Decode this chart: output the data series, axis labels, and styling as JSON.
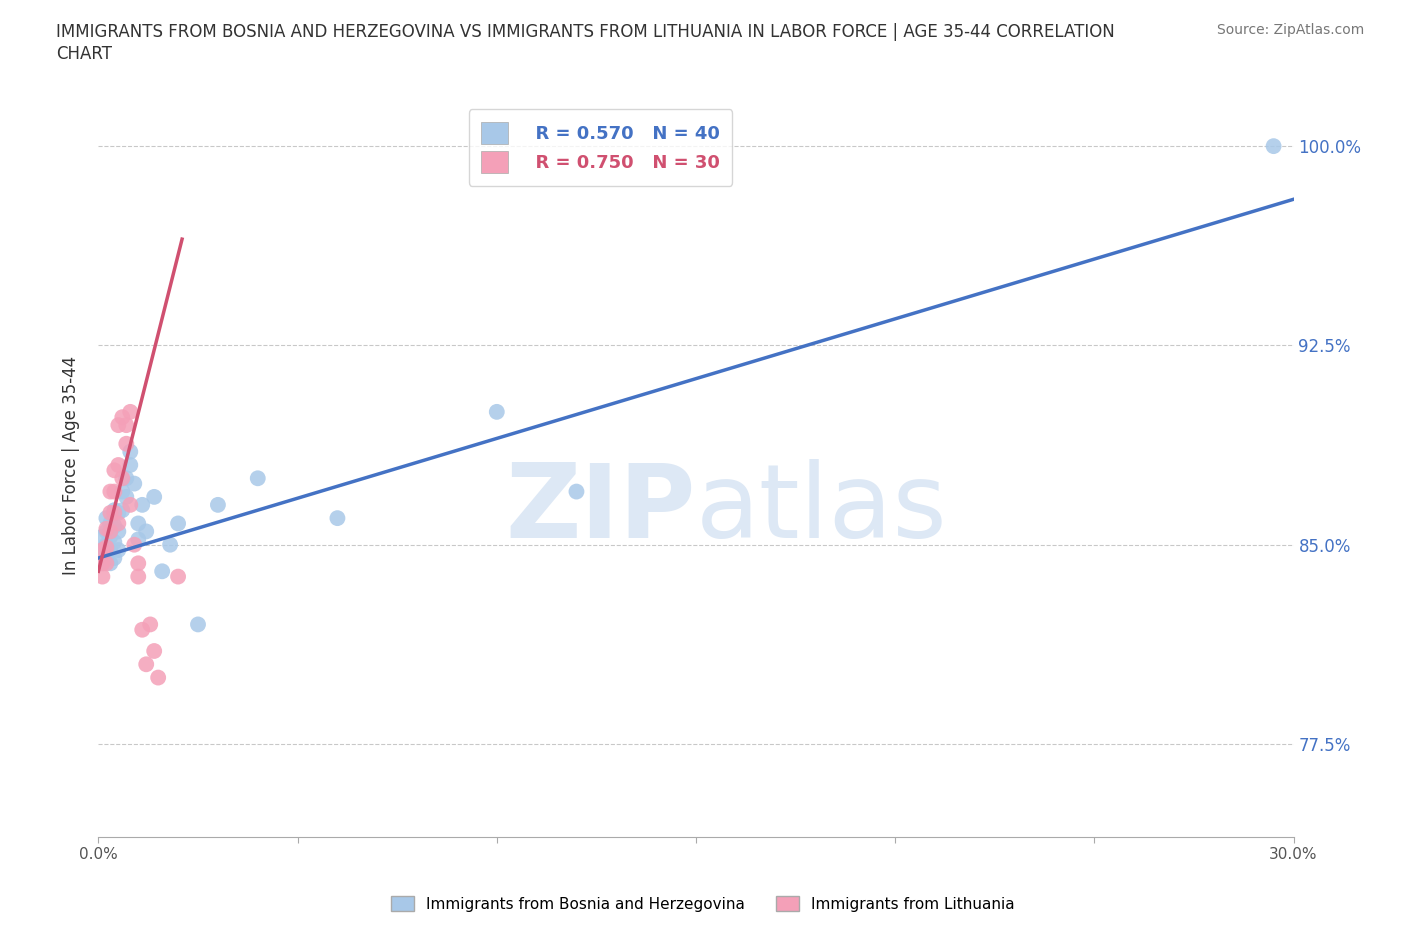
{
  "title": "IMMIGRANTS FROM BOSNIA AND HERZEGOVINA VS IMMIGRANTS FROM LITHUANIA IN LABOR FORCE | AGE 35-44 CORRELATION\nCHART",
  "source": "Source: ZipAtlas.com",
  "ylabel": "In Labor Force | Age 35-44",
  "xmin": 0.0,
  "xmax": 0.3,
  "ymin": 0.74,
  "ymax": 1.02,
  "yticks": [
    0.775,
    0.85,
    0.925,
    1.0
  ],
  "ytick_labels": [
    "77.5%",
    "85.0%",
    "92.5%",
    "100.0%"
  ],
  "xticks": [
    0.0,
    0.05,
    0.1,
    0.15,
    0.2,
    0.25,
    0.3
  ],
  "xtick_labels": [
    "0.0%",
    "",
    "",
    "",
    "",
    "",
    "30.0%"
  ],
  "bosnia_color": "#a8c8e8",
  "lithuania_color": "#f4a0b8",
  "line_bosnia_color": "#4472c4",
  "line_lithuania_color": "#d05070",
  "watermark_color": "#dde8f5",
  "legend_r_bosnia": "R = 0.570",
  "legend_n_bosnia": "N = 40",
  "legend_r_lithuania": "R = 0.750",
  "legend_n_lithuania": "N = 30",
  "bosnia_scatter_x": [
    0.001,
    0.001,
    0.001,
    0.002,
    0.002,
    0.002,
    0.002,
    0.003,
    0.003,
    0.003,
    0.003,
    0.004,
    0.004,
    0.004,
    0.004,
    0.005,
    0.005,
    0.005,
    0.006,
    0.006,
    0.007,
    0.007,
    0.008,
    0.008,
    0.009,
    0.01,
    0.01,
    0.011,
    0.012,
    0.014,
    0.016,
    0.018,
    0.02,
    0.025,
    0.03,
    0.04,
    0.06,
    0.1,
    0.12,
    0.295
  ],
  "bosnia_scatter_y": [
    0.853,
    0.848,
    0.843,
    0.86,
    0.855,
    0.85,
    0.845,
    0.858,
    0.853,
    0.848,
    0.843,
    0.863,
    0.857,
    0.851,
    0.845,
    0.862,
    0.855,
    0.848,
    0.87,
    0.863,
    0.875,
    0.868,
    0.88,
    0.885,
    0.873,
    0.858,
    0.852,
    0.865,
    0.855,
    0.868,
    0.84,
    0.85,
    0.858,
    0.82,
    0.865,
    0.875,
    0.86,
    0.9,
    0.87,
    1.0
  ],
  "lithuania_scatter_x": [
    0.001,
    0.001,
    0.001,
    0.002,
    0.002,
    0.002,
    0.003,
    0.003,
    0.003,
    0.004,
    0.004,
    0.004,
    0.005,
    0.005,
    0.005,
    0.006,
    0.006,
    0.007,
    0.007,
    0.008,
    0.008,
    0.009,
    0.01,
    0.01,
    0.011,
    0.012,
    0.013,
    0.014,
    0.015,
    0.02
  ],
  "lithuania_scatter_y": [
    0.848,
    0.843,
    0.838,
    0.856,
    0.849,
    0.843,
    0.87,
    0.862,
    0.855,
    0.878,
    0.87,
    0.862,
    0.88,
    0.895,
    0.858,
    0.898,
    0.875,
    0.895,
    0.888,
    0.9,
    0.865,
    0.85,
    0.843,
    0.838,
    0.818,
    0.805,
    0.82,
    0.81,
    0.8,
    0.838
  ],
  "blue_line_x": [
    0.0,
    0.3
  ],
  "blue_line_y": [
    0.845,
    0.98
  ],
  "pink_line_x": [
    0.0,
    0.021
  ],
  "pink_line_y": [
    0.84,
    0.965
  ]
}
